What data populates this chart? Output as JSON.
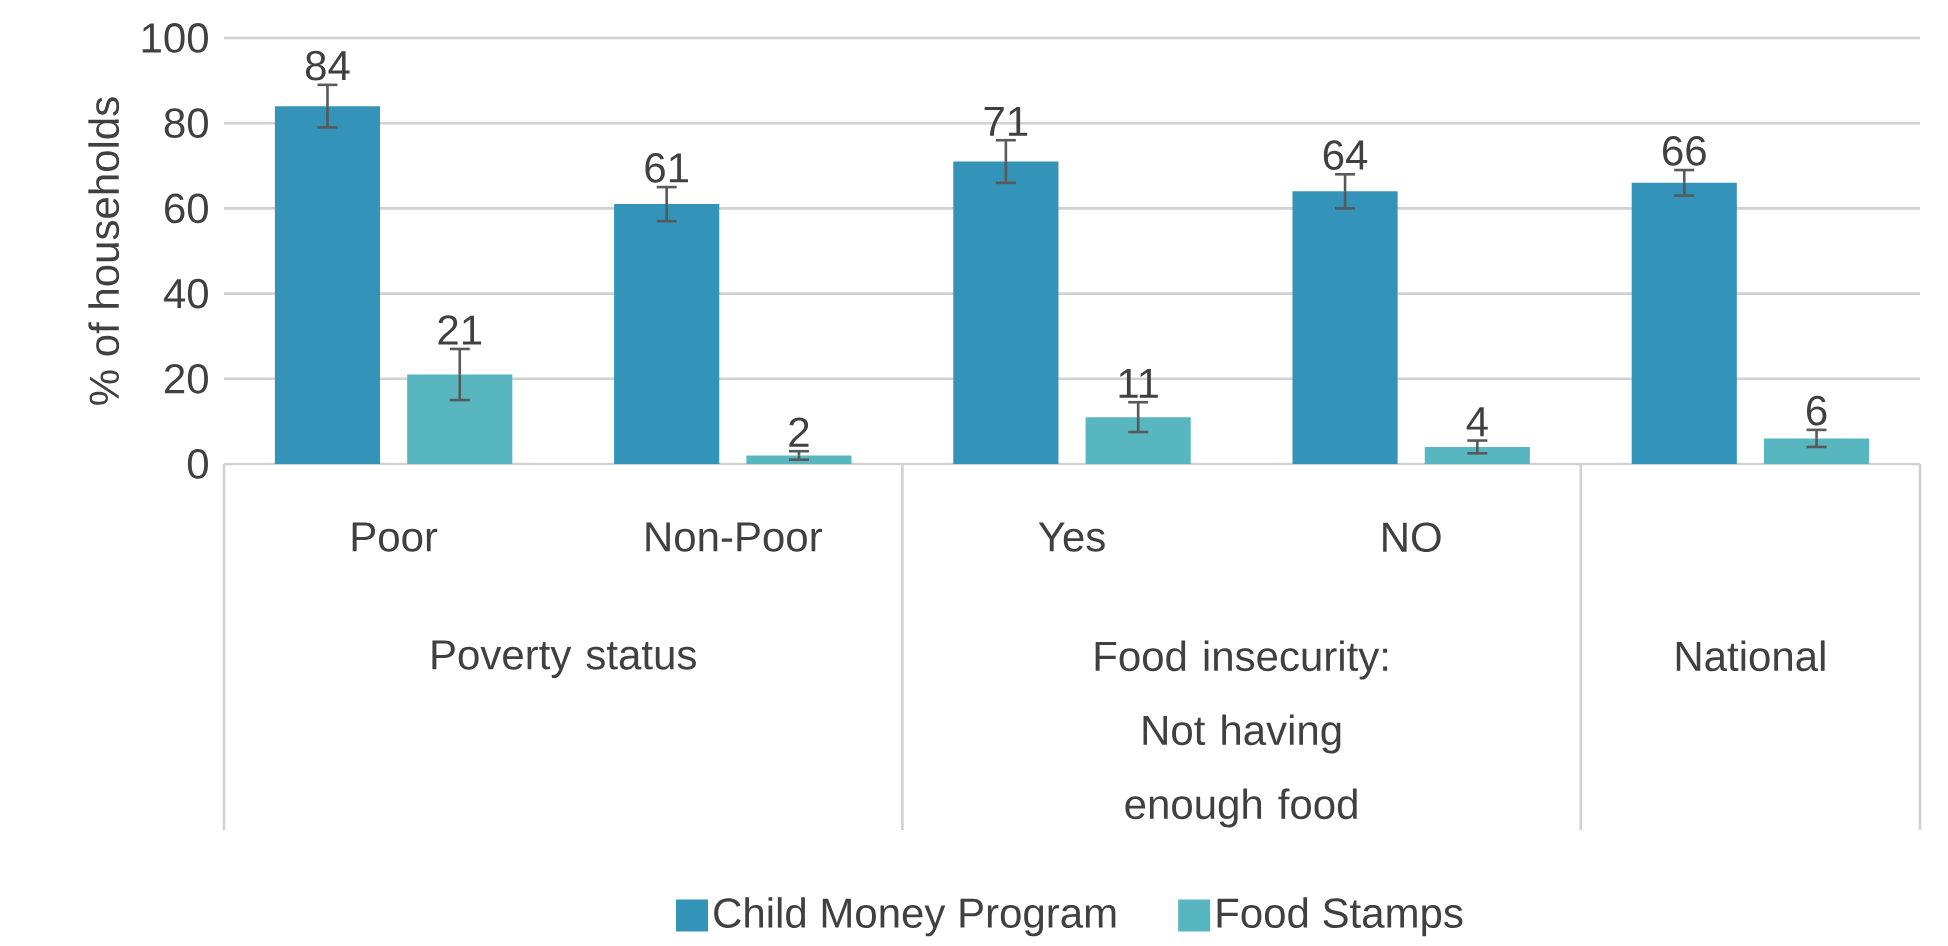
{
  "chart_data": {
    "type": "bar",
    "ylabel": "% of households",
    "categories": [
      "Poor",
      "Non-Poor",
      "Yes",
      "NO",
      null
    ],
    "series": [
      {
        "name": "Child Money Program",
        "color": "#3393b9",
        "values": [
          84,
          61,
          71,
          64,
          66
        ],
        "errors": [
          5,
          4,
          5,
          4,
          3
        ]
      },
      {
        "name": "Food Stamps",
        "color": "#57b6c0",
        "values": [
          21,
          2,
          11,
          4,
          6
        ],
        "errors": [
          6,
          1,
          3.5,
          1.5,
          2
        ]
      }
    ],
    "ylim": [
      0,
      100
    ],
    "yticks": [
      0,
      20,
      40,
      60,
      80,
      100
    ],
    "grid": "y",
    "legend": "bottom",
    "data_labels": true,
    "annotations": [
      "Poverty status",
      "Food insecurity: Not having enough food",
      "National"
    ]
  }
}
